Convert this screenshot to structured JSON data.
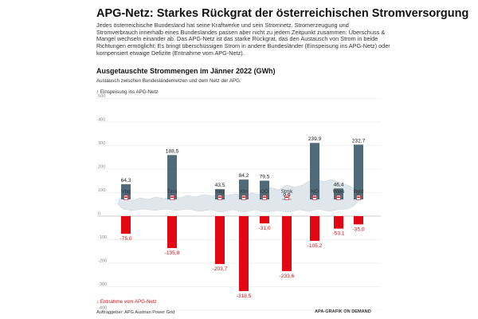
{
  "header": {
    "title": "APG-Netz: Starkes Rückgrat der österreichischen Stromversorgung",
    "intro": "Jedes österreichische Bundesland hat seine Kraftwerke und sein Stromnetz. Stromerzeugung und Stromverbrauch innerhalb eines Bundeslandes passen aber nicht zu jedem Zeitpunkt zusammen: Überschuss & Mangel wechseln einander ab. Das APG-Netz ist das starke Rückgrat, das den Austausch von Strom in beide Richtungen ermöglicht: Es bringt überschüssigen Strom in andere Bundesländer (Einspeisung ins APG-Netz) oder kompensiert etwaige Defizite (Entnahme vom APG-Netz)."
  },
  "chart_data": {
    "type": "bar",
    "title": "Ausgetauschte Strommengen im Jänner 2022 (GWh)",
    "subtitle": "Austausch zwischen Bundesländernetzen und dem Netz der APG.",
    "legend_top": "Einspeisung ins APG-Netz",
    "legend_bottom": "Entnahme vom APG-Netz",
    "categories": [
      "Vbg",
      "Tirol",
      "Sbg",
      "Ktn",
      "OÖ",
      "Stmk",
      "NÖ",
      "Wien",
      "Bgld"
    ],
    "series": [
      {
        "name": "Einspeisung ins APG-Netz",
        "color": "#4f6a78",
        "values": [
          64.3,
          188.5,
          43.5,
          84.2,
          79.5,
          0.9,
          239.9,
          46.4,
          232.7
        ],
        "labels": [
          "64,3",
          "188,5",
          "43,5",
          "84,2",
          "79,5",
          "0,9",
          "239,9",
          "46,4",
          "232,7"
        ]
      },
      {
        "name": "Entnahme vom APG-Netz",
        "color": "#e30613",
        "values": [
          -75.0,
          -135.8,
          -203.7,
          -318.5,
          -31.0,
          -233.6,
          -105.2,
          -53.1,
          -35.0
        ],
        "labels": [
          "-75,0",
          "-135,8",
          "-203,7",
          "-318,5",
          "-31,0",
          "-233,6",
          "-105,2",
          "-53,1",
          "-35,0"
        ]
      }
    ],
    "ylim": [
      -400,
      500
    ],
    "yticks": [
      500,
      400,
      300,
      200,
      100,
      0,
      -100,
      -200,
      -300,
      -400
    ],
    "grid": true
  },
  "footer": {
    "source": "Auftraggeber: APG Austrian Power Grid",
    "credit": "APA-GRAFIK ON DEMAND"
  },
  "colors": {
    "positive": "#4f6a78",
    "negative": "#e30613",
    "map": "#dfe6ec"
  }
}
